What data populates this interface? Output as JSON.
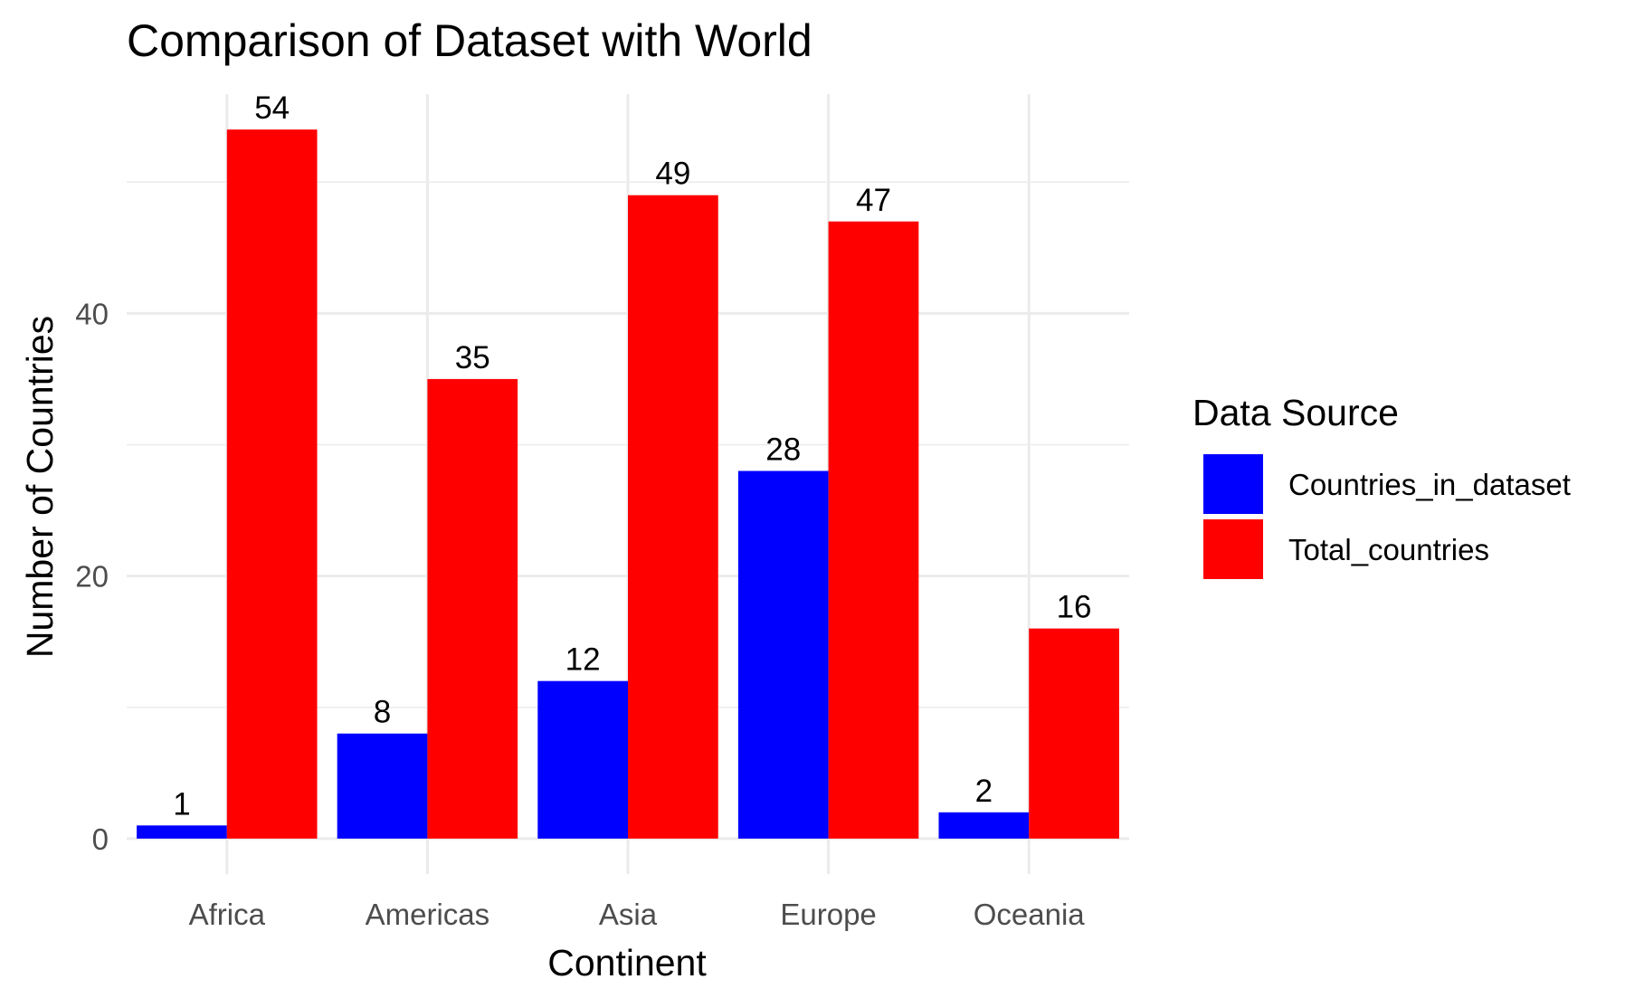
{
  "chart_data": {
    "type": "bar",
    "title": "Comparison of Dataset with World",
    "xlabel": "Continent",
    "ylabel": "Number of Countries",
    "categories": [
      "Africa",
      "Americas",
      "Asia",
      "Europe",
      "Oceania"
    ],
    "series": [
      {
        "name": "Countries_in_dataset",
        "color": "#0000ff",
        "values": [
          1,
          8,
          12,
          28,
          2
        ]
      },
      {
        "name": "Total_countries",
        "color": "#ff0000",
        "values": [
          54,
          35,
          49,
          47,
          16
        ]
      }
    ],
    "ylim": [
      -2.7,
      56.7
    ],
    "yticks": [
      0,
      20,
      40
    ],
    "grid": true,
    "legend": {
      "title": "Data Source",
      "position": "right"
    }
  }
}
